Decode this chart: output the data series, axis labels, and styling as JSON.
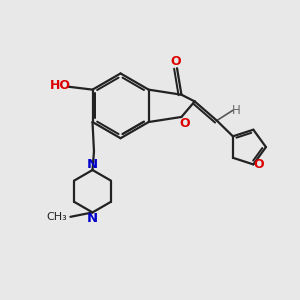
{
  "bg_color": "#e8e8e8",
  "bond_color": "#222222",
  "bond_width": 1.6,
  "oxygen_color": "#dd0000",
  "nitrogen_color": "#0000cc",
  "carbon_color": "#222222",
  "h_color": "#666666",
  "figsize": [
    3.0,
    3.0
  ],
  "dpi": 100,
  "xlim": [
    0,
    10
  ],
  "ylim": [
    0,
    10
  ]
}
